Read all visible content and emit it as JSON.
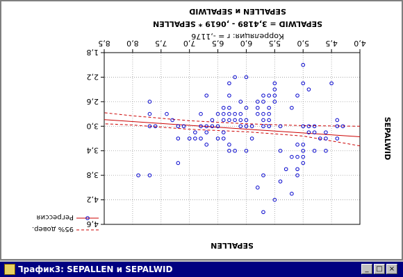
{
  "window": {
    "title": "Ꞁрафик3: SEPALLEN и SEPALWID",
    "minimize_symbol": "_",
    "maximize_symbol": "□",
    "close_symbol": "×"
  },
  "chart_data": {
    "type": "scatter",
    "title": "SEPALLEN и SEPALWID",
    "equation": "SEPALWID = 3,4189 - ,0619 * SEPALLEN",
    "correlation": "Корреляция: r = -,1176",
    "xlabel": "SEPALLEN",
    "ylabel": "SEPALWID",
    "xlim": [
      4.0,
      8.5
    ],
    "ylim": [
      1.8,
      4.6
    ],
    "y_reversed": true,
    "x_ticks": [
      "4,0",
      "4,5",
      "5,0",
      "5,5",
      "6,0",
      "6,5",
      "7,0",
      "7,5",
      "8,0",
      "8,5"
    ],
    "y_ticks": [
      "1,8",
      "2,2",
      "2,6",
      "3,0",
      "3,4",
      "3,8",
      "4,2",
      "4,6"
    ],
    "grid": true,
    "legend_position": "top-right",
    "legend": [
      "Регрессия",
      "95% довер."
    ],
    "colors": {
      "points": "#0000cc",
      "regression": "#cc0000"
    },
    "regression": {
      "intercept": 3.4189,
      "slope": -0.0619
    },
    "confidence_band": {
      "upper": [
        [
          4.0,
          3.0
        ],
        [
          5.0,
          2.99
        ],
        [
          6.0,
          2.96
        ],
        [
          7.0,
          2.91
        ],
        [
          8.0,
          2.83
        ],
        [
          8.5,
          2.78
        ]
      ],
      "lower": [
        [
          4.0,
          3.32
        ],
        [
          5.0,
          3.16
        ],
        [
          6.0,
          3.09
        ],
        [
          7.0,
          3.05
        ],
        [
          8.0,
          2.98
        ],
        [
          8.5,
          2.96
        ]
      ]
    },
    "points": [
      [
        4.3,
        3.0
      ],
      [
        4.4,
        2.9
      ],
      [
        4.4,
        3.0
      ],
      [
        4.4,
        3.2
      ],
      [
        4.5,
        2.3
      ],
      [
        4.6,
        3.1
      ],
      [
        4.6,
        3.4
      ],
      [
        4.6,
        3.2
      ],
      [
        4.7,
        3.2
      ],
      [
        4.8,
        3.0
      ],
      [
        4.8,
        3.1
      ],
      [
        4.8,
        3.4
      ],
      [
        4.9,
        3.0
      ],
      [
        4.9,
        3.1
      ],
      [
        4.9,
        2.4
      ],
      [
        5.0,
        3.6
      ],
      [
        5.0,
        3.4
      ],
      [
        5.0,
        3.0
      ],
      [
        5.0,
        3.3
      ],
      [
        5.0,
        3.5
      ],
      [
        5.0,
        2.0
      ],
      [
        5.0,
        2.3
      ],
      [
        5.1,
        3.5
      ],
      [
        5.1,
        3.8
      ],
      [
        5.1,
        3.7
      ],
      [
        5.1,
        3.3
      ],
      [
        5.1,
        2.5
      ],
      [
        5.2,
        3.5
      ],
      [
        5.2,
        4.1
      ],
      [
        5.2,
        2.7
      ],
      [
        5.3,
        3.7
      ],
      [
        5.4,
        3.9
      ],
      [
        5.4,
        3.4
      ],
      [
        5.4,
        3.0
      ],
      [
        5.5,
        4.2
      ],
      [
        5.5,
        2.3
      ],
      [
        5.5,
        2.4
      ],
      [
        5.5,
        2.6
      ],
      [
        5.5,
        2.5
      ],
      [
        5.6,
        2.9
      ],
      [
        5.6,
        3.0
      ],
      [
        5.6,
        2.5
      ],
      [
        5.6,
        2.7
      ],
      [
        5.6,
        2.8
      ],
      [
        5.7,
        4.4
      ],
      [
        5.7,
        3.8
      ],
      [
        5.7,
        2.6
      ],
      [
        5.7,
        2.8
      ],
      [
        5.7,
        2.9
      ],
      [
        5.7,
        3.0
      ],
      [
        5.7,
        2.5
      ],
      [
        5.8,
        4.0
      ],
      [
        5.8,
        2.7
      ],
      [
        5.8,
        2.6
      ],
      [
        5.8,
        2.8
      ],
      [
        5.9,
        3.0
      ],
      [
        5.9,
        3.2
      ],
      [
        6.0,
        2.2
      ],
      [
        6.0,
        2.9
      ],
      [
        6.0,
        3.4
      ],
      [
        6.0,
        2.7
      ],
      [
        6.0,
        3.0
      ],
      [
        6.1,
        2.8
      ],
      [
        6.1,
        3.0
      ],
      [
        6.1,
        2.6
      ],
      [
        6.1,
        2.9
      ],
      [
        6.2,
        2.2
      ],
      [
        6.2,
        2.8
      ],
      [
        6.2,
        2.9
      ],
      [
        6.2,
        3.4
      ],
      [
        6.3,
        2.3
      ],
      [
        6.3,
        3.3
      ],
      [
        6.3,
        2.5
      ],
      [
        6.3,
        2.8
      ],
      [
        6.3,
        2.7
      ],
      [
        6.3,
        2.9
      ],
      [
        6.3,
        3.4
      ],
      [
        6.4,
        3.2
      ],
      [
        6.4,
        2.7
      ],
      [
        6.4,
        2.8
      ],
      [
        6.4,
        2.9
      ],
      [
        6.4,
        3.1
      ],
      [
        6.5,
        2.8
      ],
      [
        6.5,
        3.0
      ],
      [
        6.5,
        3.2
      ],
      [
        6.6,
        2.9
      ],
      [
        6.6,
        3.0
      ],
      [
        6.7,
        3.1
      ],
      [
        6.7,
        3.0
      ],
      [
        6.7,
        2.5
      ],
      [
        6.7,
        3.3
      ],
      [
        6.8,
        2.8
      ],
      [
        6.8,
        3.0
      ],
      [
        6.8,
        3.2
      ],
      [
        6.9,
        3.1
      ],
      [
        6.9,
        3.2
      ],
      [
        7.0,
        3.2
      ],
      [
        7.1,
        3.0
      ],
      [
        7.2,
        3.6
      ],
      [
        7.2,
        3.2
      ],
      [
        7.2,
        3.0
      ],
      [
        7.3,
        2.9
      ],
      [
        7.4,
        2.8
      ],
      [
        7.6,
        3.0
      ],
      [
        7.7,
        2.6
      ],
      [
        7.7,
        3.8
      ],
      [
        7.7,
        2.8
      ],
      [
        7.7,
        3.0
      ],
      [
        7.9,
        3.8
      ]
    ]
  }
}
